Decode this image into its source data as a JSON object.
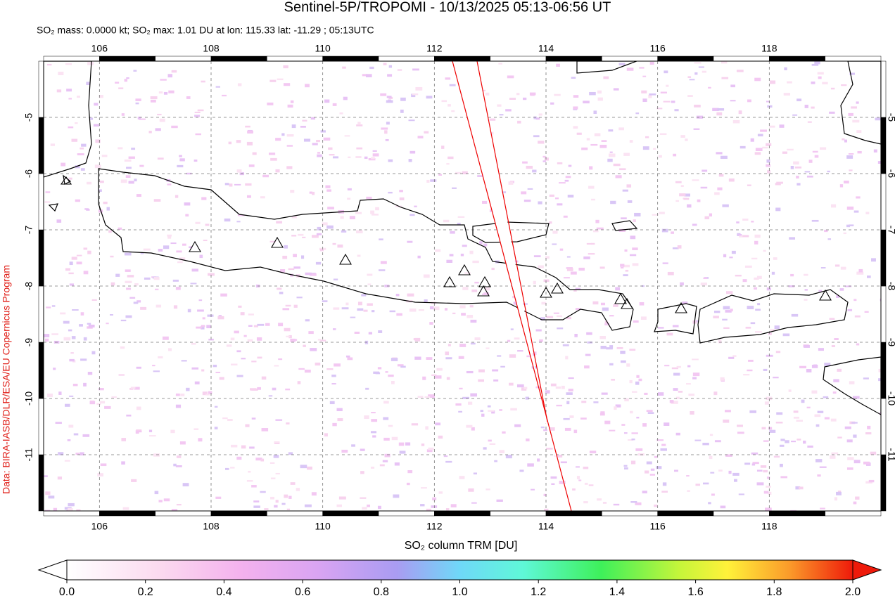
{
  "title": "Sentinel-5P/TROPOMI - 10/13/2025 05:13-06:56 UT",
  "subtitle": "SO₂ mass: 0.0000 kt; SO₂ max: 1.01 DU at lon: 115.33 lat: -11.29 ; 05:13UTC",
  "credit": "Data: BIRA-IASB/DLR/ESA/EU Copernicus Program",
  "map": {
    "xlim": [
      105,
      120
    ],
    "ylim": [
      -12,
      -4
    ],
    "xticks": [
      106,
      108,
      110,
      112,
      114,
      116,
      118
    ],
    "yticks": [
      -5,
      -6,
      -7,
      -8,
      -9,
      -10,
      -11
    ]
  },
  "colorbar": {
    "label": "SO₂ column TRM [DU]",
    "lim": [
      0,
      2
    ],
    "ticks": [
      {
        "value": 0,
        "label": "0.0"
      },
      {
        "value": 0.2,
        "label": "0.2"
      },
      {
        "value": 0.4,
        "label": "0.4"
      },
      {
        "value": 0.6,
        "label": "0.6"
      },
      {
        "value": 0.8,
        "label": "0.8"
      },
      {
        "value": 1,
        "label": "1.0"
      },
      {
        "value": 1.2,
        "label": "1.2"
      },
      {
        "value": 1.4,
        "label": "1.4"
      },
      {
        "value": 1.6,
        "label": "1.6"
      },
      {
        "value": 1.8,
        "label": "1.8"
      },
      {
        "value": 2,
        "label": "2.0"
      }
    ]
  }
}
